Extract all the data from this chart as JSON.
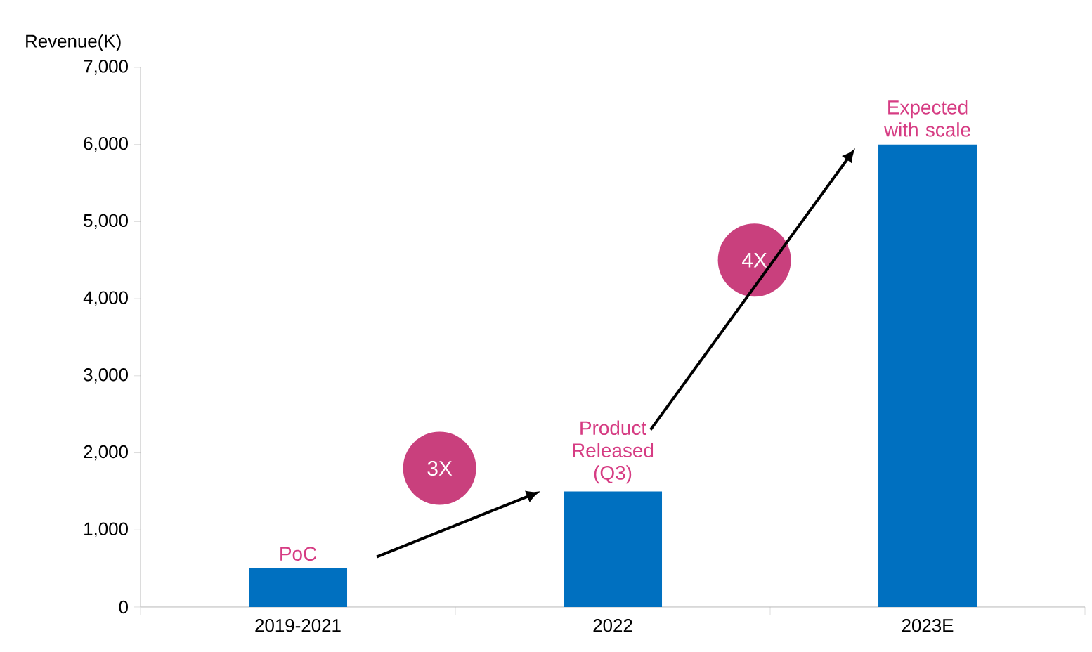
{
  "chart_data": {
    "type": "bar",
    "ylabel": "Revenue(K)",
    "categories": [
      "2019-2021",
      "2022",
      "2023E"
    ],
    "values": [
      500,
      1500,
      6000
    ],
    "color": "#0070c0",
    "ylim": [
      0,
      7000
    ],
    "yticks": [
      0,
      {
        "value": 1000,
        "label": "1,000"
      },
      {
        "value": 2000,
        "label": "2,000"
      },
      {
        "value": 3000,
        "label": "3,000"
      },
      {
        "value": 4000,
        "label": "4,000"
      },
      {
        "value": 5000,
        "label": "5,000"
      },
      {
        "value": 6000,
        "label": "6,000"
      },
      {
        "value": 7000,
        "label": "7,000"
      }
    ],
    "annotations": [
      {
        "text": "PoC",
        "x": "2019-2021",
        "y": 500
      },
      {
        "text": "Product Released (Q3)",
        "x": "2022",
        "y": 1500
      },
      {
        "text": "Expected with scale",
        "x": "2023E",
        "y": 6000
      },
      "3X",
      "4X"
    ]
  }
}
